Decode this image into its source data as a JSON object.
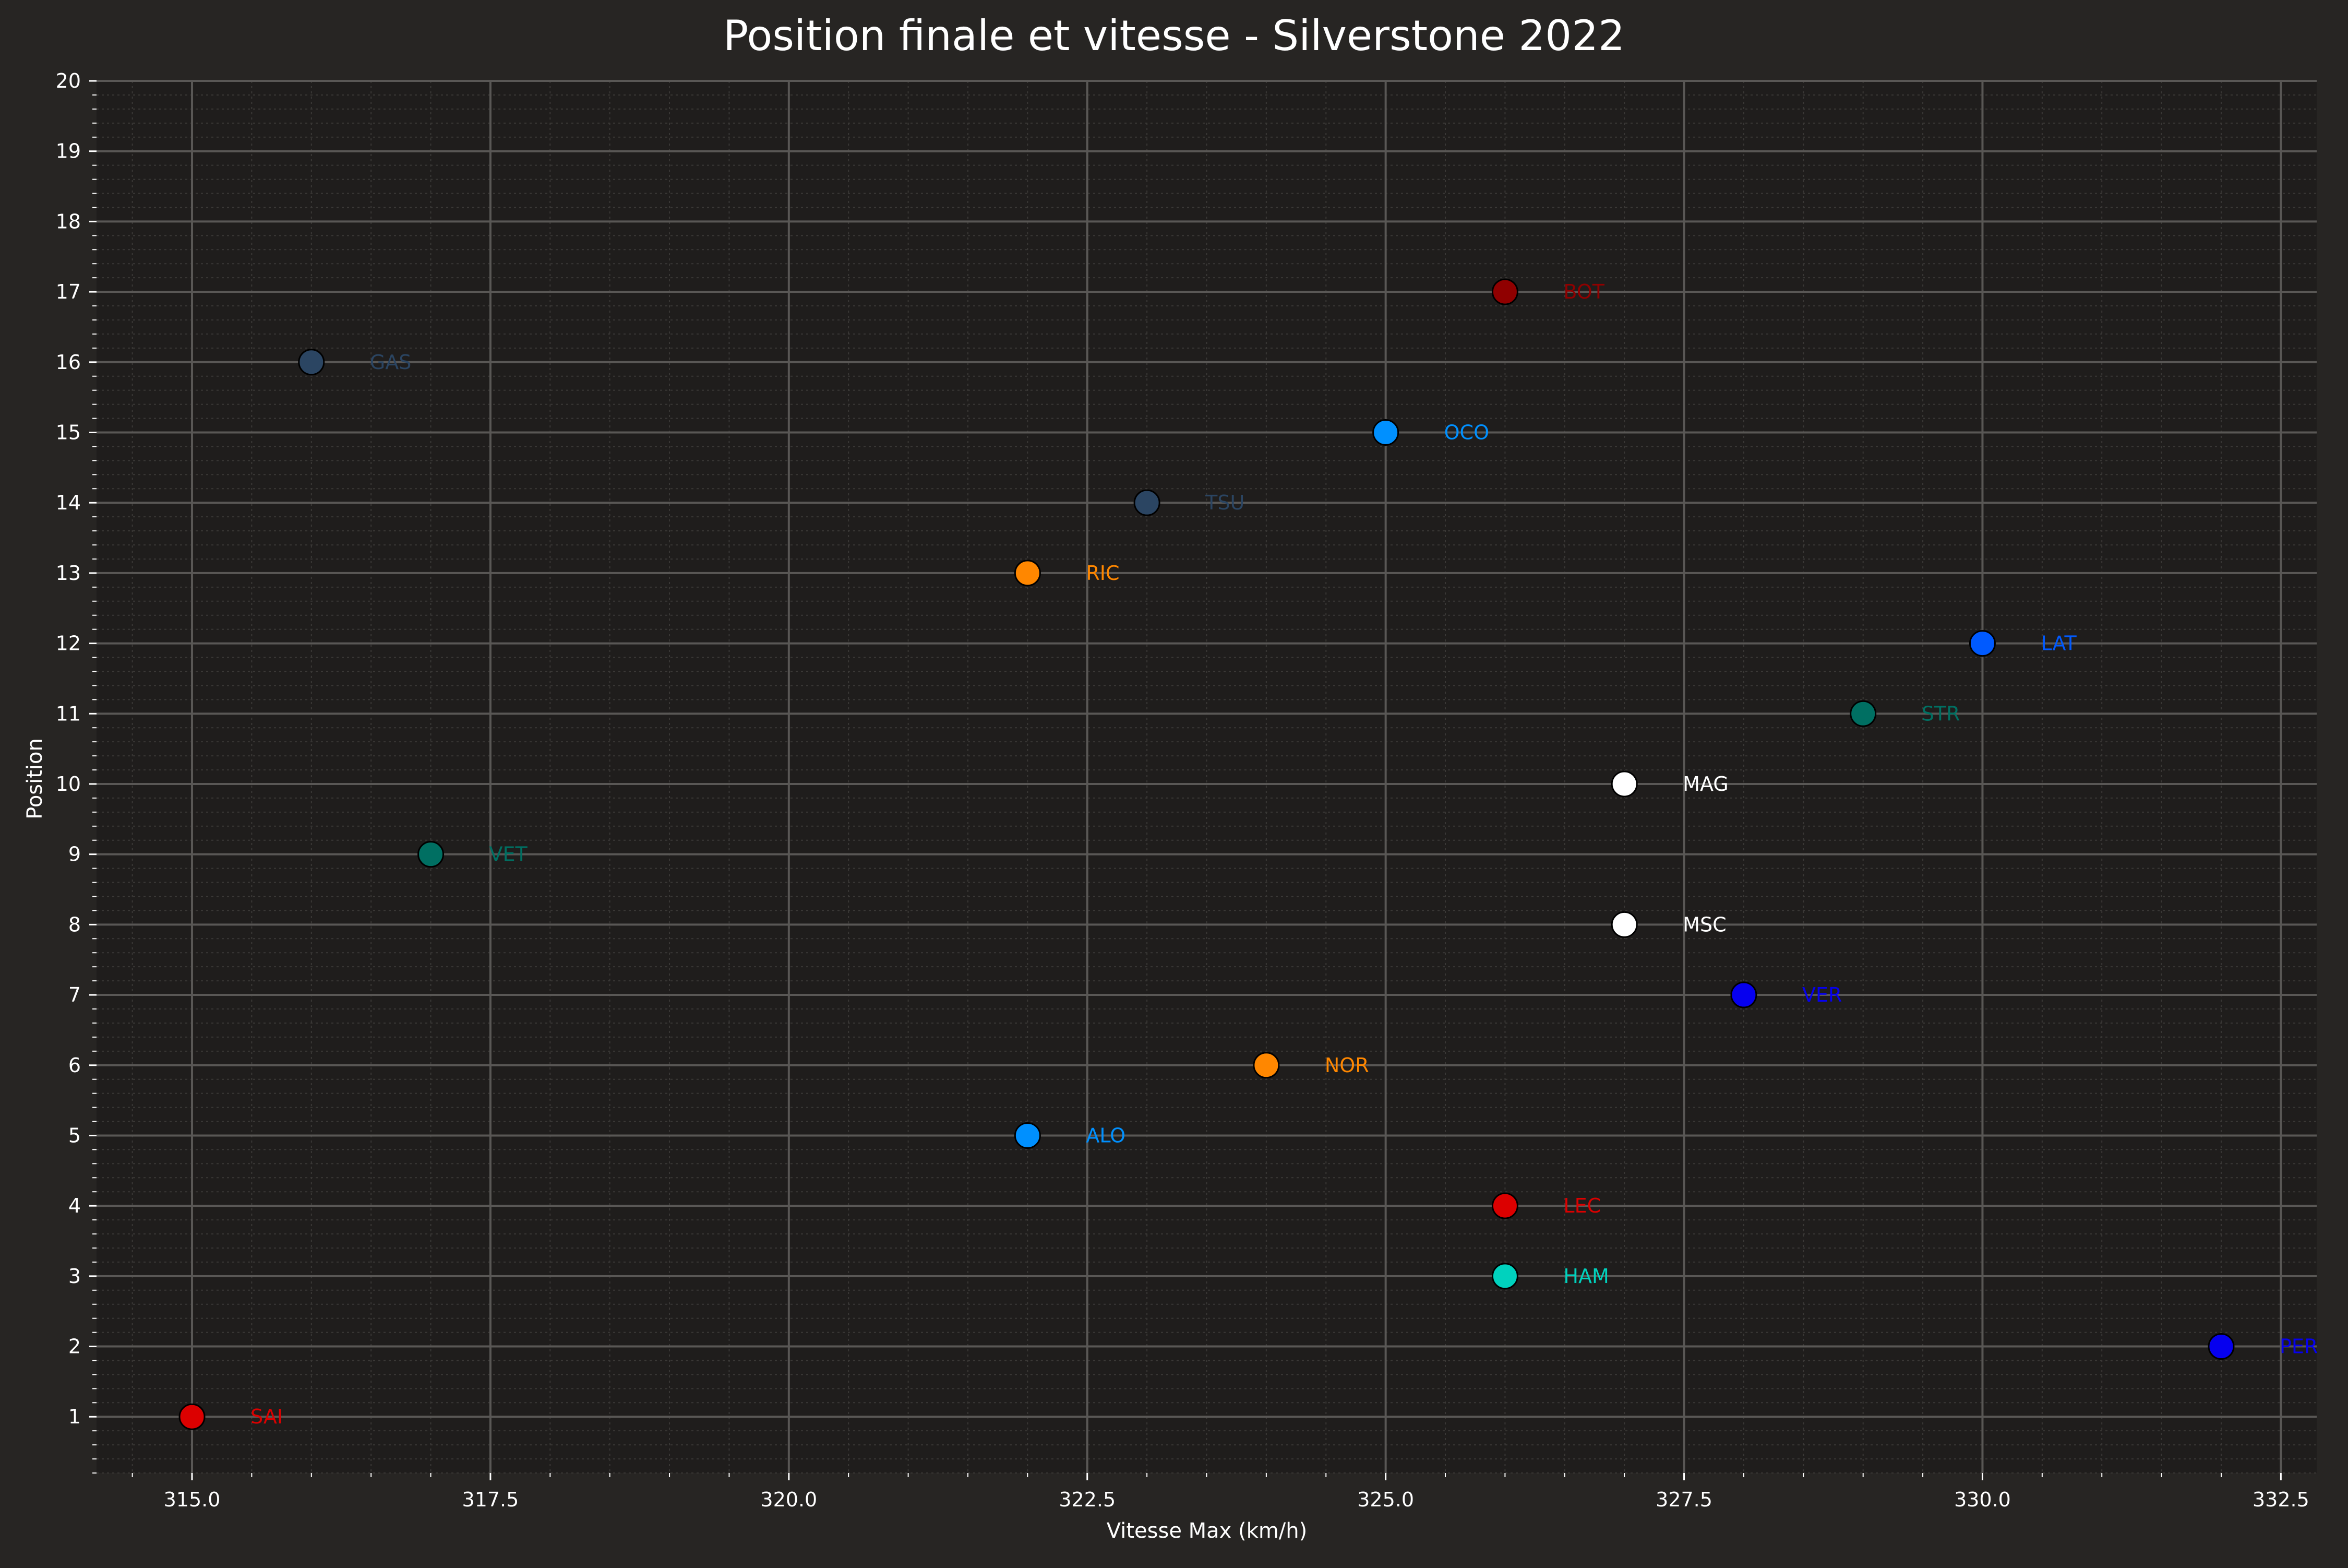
{
  "chart_data": {
    "type": "scatter",
    "title": "Position finale et vitesse - Silverstone 2022",
    "xlabel": "Vitesse Max (km/h)",
    "ylabel": "Position",
    "xlim": [
      314.2,
      332.8
    ],
    "ylim": [
      0.2,
      20
    ],
    "xticks": [
      315.0,
      317.5,
      320.0,
      322.5,
      325.0,
      327.5,
      330.0,
      332.5
    ],
    "xtick_labels": [
      "315.0",
      "317.5",
      "320.0",
      "322.5",
      "325.0",
      "327.5",
      "330.0",
      "332.5"
    ],
    "yticks": [
      1,
      2,
      3,
      4,
      5,
      6,
      7,
      8,
      9,
      10,
      11,
      12,
      13,
      14,
      15,
      16,
      17,
      18,
      19,
      20
    ],
    "grid": true,
    "colors": {
      "background": "#272523",
      "plot_background": "#1f1d1c",
      "text": "#ffffff"
    },
    "points": [
      {
        "driver": "SAI",
        "x": 315,
        "y": 1,
        "color": "#dc0000"
      },
      {
        "driver": "PER",
        "x": 332,
        "y": 2,
        "color": "#0600ef"
      },
      {
        "driver": "HAM",
        "x": 326,
        "y": 3,
        "color": "#00d2be"
      },
      {
        "driver": "LEC",
        "x": 326,
        "y": 4,
        "color": "#dc0000"
      },
      {
        "driver": "ALO",
        "x": 322,
        "y": 5,
        "color": "#0090ff"
      },
      {
        "driver": "NOR",
        "x": 324,
        "y": 6,
        "color": "#ff8700"
      },
      {
        "driver": "VER",
        "x": 328,
        "y": 7,
        "color": "#0600ef"
      },
      {
        "driver": "MSC",
        "x": 327,
        "y": 8,
        "color": "#ffffff"
      },
      {
        "driver": "VET",
        "x": 317,
        "y": 9,
        "color": "#006f62"
      },
      {
        "driver": "MAG",
        "x": 327,
        "y": 10,
        "color": "#ffffff"
      },
      {
        "driver": "STR",
        "x": 329,
        "y": 11,
        "color": "#006f62"
      },
      {
        "driver": "LAT",
        "x": 330,
        "y": 12,
        "color": "#005aff"
      },
      {
        "driver": "RIC",
        "x": 322,
        "y": 13,
        "color": "#ff8700"
      },
      {
        "driver": "TSU",
        "x": 323,
        "y": 14,
        "color": "#2b4562"
      },
      {
        "driver": "OCO",
        "x": 325,
        "y": 15,
        "color": "#0090ff"
      },
      {
        "driver": "GAS",
        "x": 316,
        "y": 16,
        "color": "#2b4562"
      },
      {
        "driver": "BOT",
        "x": 326,
        "y": 17,
        "color": "#900000"
      }
    ]
  }
}
